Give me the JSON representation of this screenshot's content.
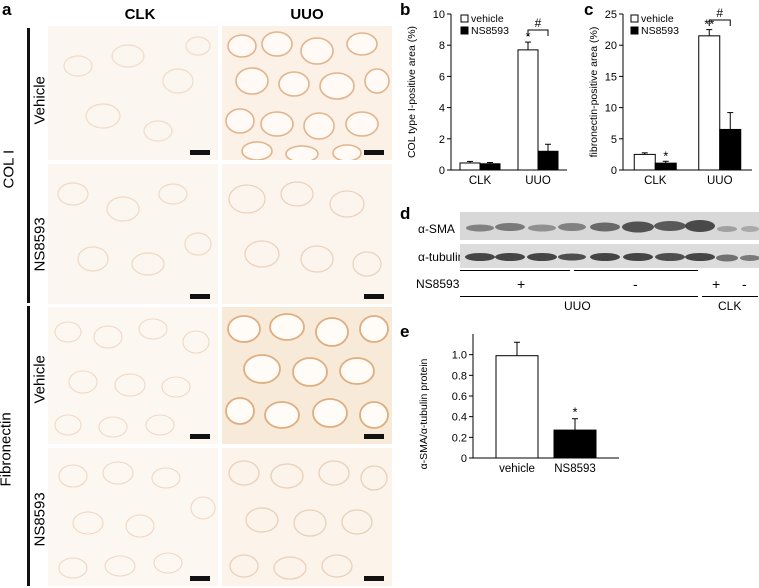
{
  "panels": {
    "a": {
      "label": "a",
      "col_headers": [
        "CLK",
        "UUO"
      ],
      "group_labels": [
        "COL I",
        "Fibronectin"
      ],
      "row_labels": [
        "Vehicle",
        "NS8593",
        "Vehicle",
        "NS8593"
      ]
    },
    "b": {
      "label": "b"
    },
    "c": {
      "label": "c"
    },
    "d": {
      "label": "d",
      "bands": [
        "α-SMA",
        "α-tubulin"
      ],
      "treatment_label": "NS8593",
      "treatment_marks": [
        "+",
        "-",
        "+",
        "-"
      ],
      "groups": [
        "UUO",
        "CLK"
      ]
    },
    "e": {
      "label": "e"
    }
  },
  "colors": {
    "tissue_bg": "#fdf8f2",
    "stain": "#e8b88a",
    "bar_filled": "#000000",
    "bar_open": "#ffffff"
  },
  "chart_data": [
    {
      "id": "b",
      "type": "bar",
      "categories": [
        "CLK",
        "UUO"
      ],
      "series": [
        {
          "name": "vehicle",
          "values": [
            0.45,
            7.7
          ],
          "errors": [
            0.1,
            0.5
          ]
        },
        {
          "name": "NS8593",
          "values": [
            0.4,
            1.2
          ],
          "errors": [
            0.08,
            0.45
          ]
        }
      ],
      "ylabel": "COL type I-positive area (%)",
      "ylim": [
        0,
        10
      ],
      "yticks": [
        "0",
        "2",
        "4",
        "6",
        "8",
        "10"
      ],
      "legend": "top-left",
      "annotations": {
        "star": "*",
        "hash": "#"
      }
    },
    {
      "id": "c",
      "type": "bar",
      "categories": [
        "CLK",
        "UUO"
      ],
      "series": [
        {
          "name": "vehicle",
          "values": [
            2.5,
            21.5
          ],
          "errors": [
            0.25,
            1.0
          ]
        },
        {
          "name": "NS8593",
          "values": [
            1.1,
            6.5
          ],
          "errors": [
            0.3,
            2.7
          ]
        }
      ],
      "ylabel": "fibronectin-positive area (%)",
      "ylim": [
        0,
        25
      ],
      "yticks": [
        "0",
        "5",
        "10",
        "15",
        "20",
        "25"
      ],
      "legend": "top-left",
      "annotations": {
        "star": "*",
        "star2": "**",
        "hash": "#"
      }
    },
    {
      "id": "e",
      "type": "bar",
      "categories": [
        "vehicle",
        "NS8593"
      ],
      "series": [
        {
          "name": "α-SMA/α-tubulin protein",
          "values": [
            0.99,
            0.27
          ],
          "errors": [
            0.13,
            0.11
          ]
        }
      ],
      "ylabel": "α-SMA/α-tubulin protein",
      "ylim": [
        0,
        1.2
      ],
      "yticks": [
        "0",
        "0.2",
        "0.4",
        "0.6",
        "0.8",
        "1.0"
      ],
      "annotations": {
        "star": "*"
      }
    }
  ]
}
